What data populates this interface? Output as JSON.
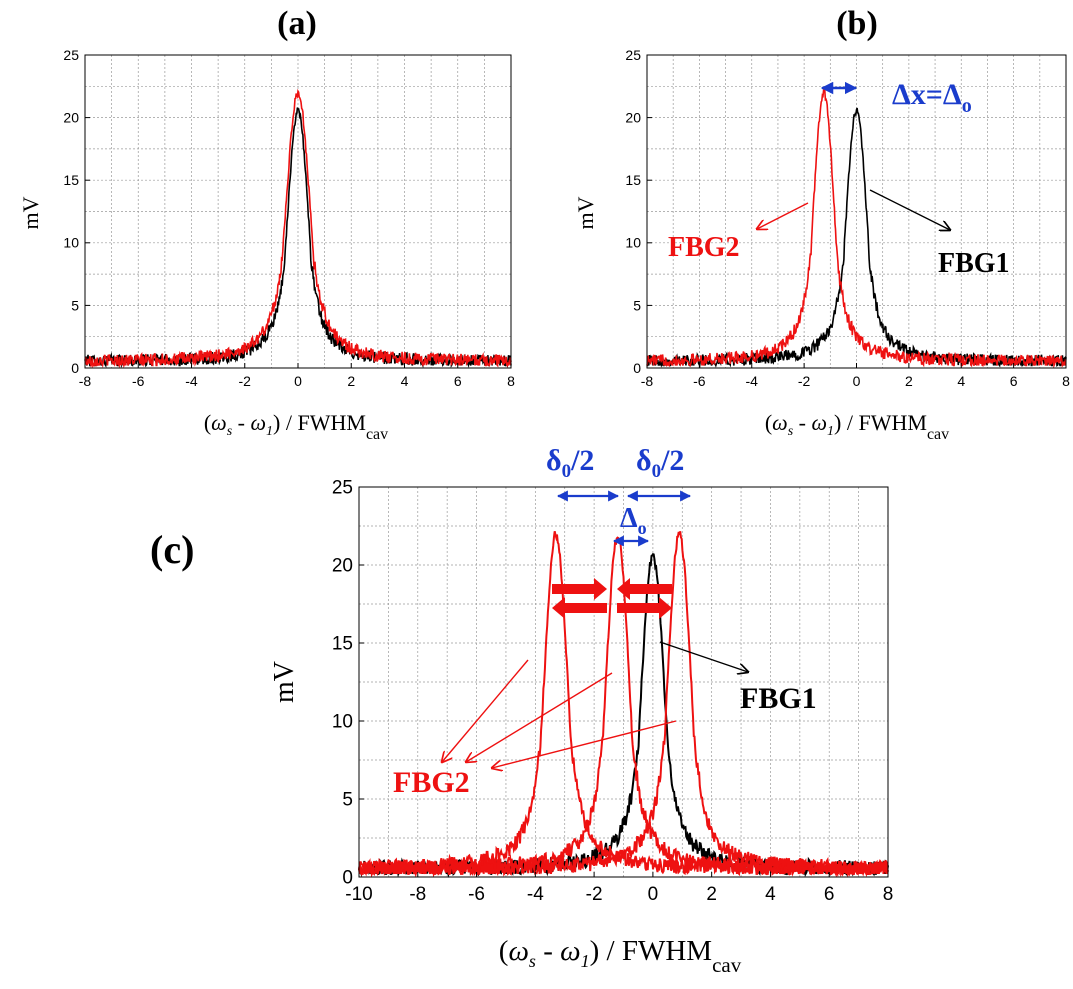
{
  "chart_data": [
    {
      "type": "line",
      "panel_label": "(a)",
      "ylabel": "mV",
      "xlabel_parts": {
        "lp": "(",
        "w1": "ω",
        "s1": "s",
        "minus": " - ",
        "w2": "ω",
        "s2": "1",
        "rp": ")",
        "rest": " / FWHM",
        "sub": "cav"
      },
      "xlim": [
        -8,
        8
      ],
      "ylim": [
        0,
        25
      ],
      "xticks": [
        -8,
        -6,
        -4,
        -2,
        0,
        2,
        4,
        6,
        8
      ],
      "yticks": [
        0,
        5,
        10,
        15,
        20,
        25
      ],
      "grid": true,
      "series": [
        {
          "color": "#000000",
          "center": 0.0,
          "peak": 20.6,
          "sigma": 0.4
        },
        {
          "color": "#ee1111",
          "center": 0.0,
          "peak": 22.0,
          "sigma": 0.46
        }
      ],
      "annotations": []
    },
    {
      "type": "line",
      "panel_label": "(b)",
      "ylabel": "mV",
      "xlabel_parts": {
        "lp": "(",
        "w1": "ω",
        "s1": "s",
        "minus": " - ",
        "w2": "ω",
        "s2": "1",
        "rp": ")",
        "rest": " / FWHM",
        "sub": "cav"
      },
      "xlim": [
        -8,
        8
      ],
      "ylim": [
        0,
        25
      ],
      "xticks": [
        -8,
        -6,
        -4,
        -2,
        0,
        2,
        4,
        6,
        8
      ],
      "yticks": [
        0,
        5,
        10,
        15,
        20,
        25
      ],
      "grid": true,
      "series": [
        {
          "color": "#000000",
          "center": 0.0,
          "peak": 20.6,
          "sigma": 0.4
        },
        {
          "color": "#ee1111",
          "center": -1.25,
          "peak": 22.0,
          "sigma": 0.4
        }
      ],
      "annotations": [
        {
          "text": "FBG2",
          "color": "#ee1111"
        },
        {
          "text": "FBG1",
          "color": "#000000"
        },
        {
          "text_main": "Δx=Δ",
          "text_sub": "o",
          "color": "#1a3ccc"
        }
      ]
    },
    {
      "type": "line",
      "panel_label": "(c)",
      "ylabel": "mV",
      "xlabel_parts": {
        "lp": "(",
        "w1": "ω",
        "s1": "s",
        "minus": " - ",
        "w2": "ω",
        "s2": "1",
        "rp": ")",
        "rest": " / FWHM",
        "sub": "cav"
      },
      "xlim": [
        -10,
        8
      ],
      "ylim": [
        0,
        25
      ],
      "xticks": [
        -10,
        -8,
        -6,
        -4,
        -2,
        0,
        2,
        4,
        6,
        8
      ],
      "yticks": [
        0,
        5,
        10,
        15,
        20,
        25
      ],
      "grid": true,
      "series": [
        {
          "color": "#000000",
          "center": 0.0,
          "peak": 20.6,
          "sigma": 0.4
        },
        {
          "color": "#ee1111",
          "center": -3.3,
          "peak": 22.0,
          "sigma": 0.4
        },
        {
          "color": "#ee1111",
          "center": -1.2,
          "peak": 21.8,
          "sigma": 0.4
        },
        {
          "color": "#ee1111",
          "center": 0.9,
          "peak": 22.0,
          "sigma": 0.4
        }
      ],
      "annotations": [
        {
          "text": "FBG2",
          "color": "#ee1111"
        },
        {
          "text": "FBG1",
          "color": "#000000"
        },
        {
          "text_main": "δ",
          "text_sub": "0",
          "text_tail": "/2",
          "color": "#1a3ccc"
        },
        {
          "text_main": "δ",
          "text_sub": "0",
          "text_tail": "/2",
          "color": "#1a3ccc"
        },
        {
          "text_main": "Δ",
          "text_sub": "o",
          "color": "#1a3ccc"
        }
      ]
    }
  ]
}
